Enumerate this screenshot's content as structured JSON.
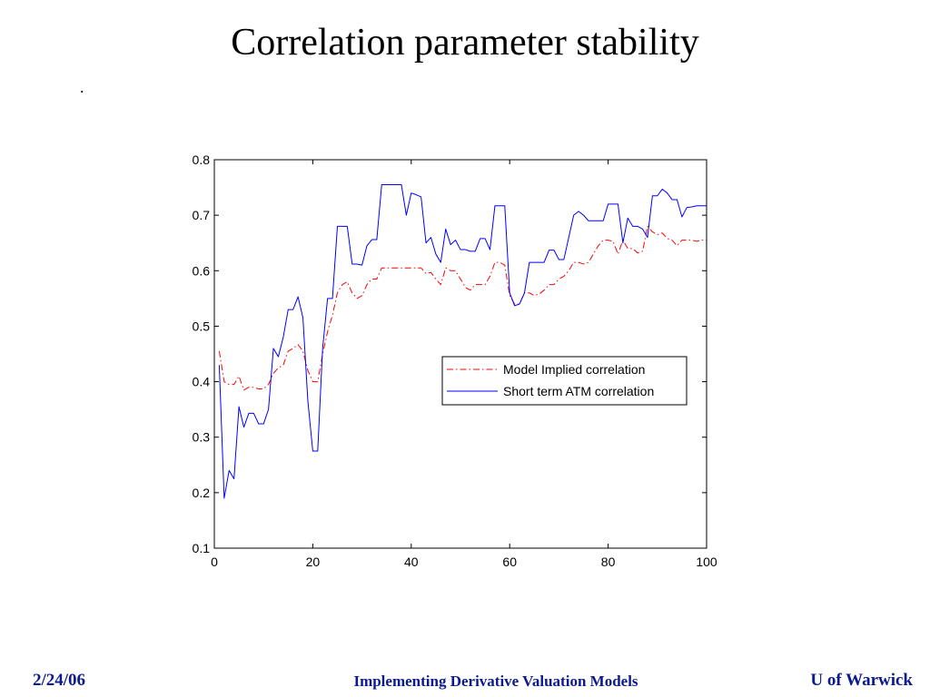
{
  "slide": {
    "title": "Correlation parameter stability",
    "note": "."
  },
  "footer": {
    "date": "2/24/06",
    "course": "Implementing Derivative Valuation Models",
    "institution": "U of Warwick",
    "color": "#0b1a8e"
  },
  "chart_data": {
    "type": "line",
    "xlim": [
      0,
      100
    ],
    "ylim": [
      0.1,
      0.8
    ],
    "xticks": [
      "0",
      "20",
      "40",
      "60",
      "80",
      "100"
    ],
    "yticks": [
      "0.1",
      "0.2",
      "0.3",
      "0.4",
      "0.5",
      "0.6",
      "0.7",
      "0.8"
    ],
    "grid": false,
    "legend": "right",
    "x": [
      1,
      2,
      3,
      4,
      5,
      6,
      7,
      8,
      9,
      10,
      11,
      12,
      13,
      14,
      15,
      16,
      17,
      18,
      19,
      20,
      21,
      22,
      23,
      24,
      25,
      26,
      27,
      28,
      29,
      30,
      31,
      32,
      33,
      34,
      35,
      36,
      37,
      38,
      39,
      40,
      41,
      42,
      43,
      44,
      45,
      46,
      47,
      48,
      49,
      50,
      51,
      52,
      53,
      54,
      55,
      56,
      57,
      58,
      59,
      60,
      61,
      62,
      63,
      64,
      65,
      66,
      67,
      68,
      69,
      70,
      71,
      72,
      73,
      74,
      75,
      76,
      77,
      78,
      79,
      80,
      81,
      82,
      83,
      84,
      85,
      86,
      87,
      88,
      89,
      90,
      91,
      92,
      93,
      94,
      95,
      96,
      97,
      98,
      99,
      100
    ],
    "series": [
      {
        "name": "Model Implied correlation",
        "color": "#ff0000",
        "style": "dash-dot",
        "values": [
          0.455,
          0.4,
          0.395,
          0.395,
          0.41,
          0.385,
          0.39,
          0.39,
          0.387,
          0.387,
          0.395,
          0.415,
          0.425,
          0.43,
          0.455,
          0.46,
          0.467,
          0.455,
          0.42,
          0.4,
          0.4,
          0.45,
          0.49,
          0.52,
          0.56,
          0.575,
          0.58,
          0.56,
          0.55,
          0.555,
          0.575,
          0.585,
          0.585,
          0.605,
          0.605,
          0.605,
          0.605,
          0.605,
          0.605,
          0.605,
          0.605,
          0.605,
          0.595,
          0.597,
          0.585,
          0.575,
          0.605,
          0.6,
          0.6,
          0.585,
          0.57,
          0.565,
          0.575,
          0.575,
          0.575,
          0.59,
          0.615,
          0.615,
          0.61,
          0.555,
          0.54,
          0.54,
          0.56,
          0.56,
          0.555,
          0.558,
          0.565,
          0.575,
          0.575,
          0.585,
          0.59,
          0.6,
          0.615,
          0.615,
          0.612,
          0.615,
          0.63,
          0.645,
          0.655,
          0.655,
          0.653,
          0.63,
          0.655,
          0.64,
          0.64,
          0.632,
          0.635,
          0.68,
          0.67,
          0.665,
          0.668,
          0.658,
          0.655,
          0.645,
          0.655,
          0.655,
          0.655,
          0.653,
          0.655,
          0.655
        ]
      },
      {
        "name": "Short term ATM correlation",
        "color": "#0000ff",
        "style": "solid",
        "values": [
          0.43,
          0.19,
          0.24,
          0.225,
          0.355,
          0.318,
          0.343,
          0.343,
          0.324,
          0.324,
          0.35,
          0.46,
          0.445,
          0.48,
          0.53,
          0.53,
          0.553,
          0.515,
          0.365,
          0.275,
          0.275,
          0.46,
          0.55,
          0.55,
          0.68,
          0.68,
          0.68,
          0.612,
          0.612,
          0.61,
          0.645,
          0.656,
          0.656,
          0.755,
          0.755,
          0.755,
          0.755,
          0.755,
          0.7,
          0.74,
          0.737,
          0.733,
          0.65,
          0.66,
          0.63,
          0.615,
          0.675,
          0.647,
          0.655,
          0.638,
          0.638,
          0.635,
          0.635,
          0.658,
          0.658,
          0.638,
          0.717,
          0.717,
          0.717,
          0.56,
          0.537,
          0.54,
          0.56,
          0.615,
          0.615,
          0.615,
          0.615,
          0.637,
          0.637,
          0.62,
          0.62,
          0.66,
          0.7,
          0.707,
          0.7,
          0.69,
          0.69,
          0.69,
          0.69,
          0.72,
          0.72,
          0.72,
          0.65,
          0.695,
          0.68,
          0.68,
          0.675,
          0.66,
          0.735,
          0.735,
          0.747,
          0.74,
          0.728,
          0.728,
          0.697,
          0.714,
          0.715,
          0.717,
          0.717,
          0.717
        ]
      }
    ]
  }
}
